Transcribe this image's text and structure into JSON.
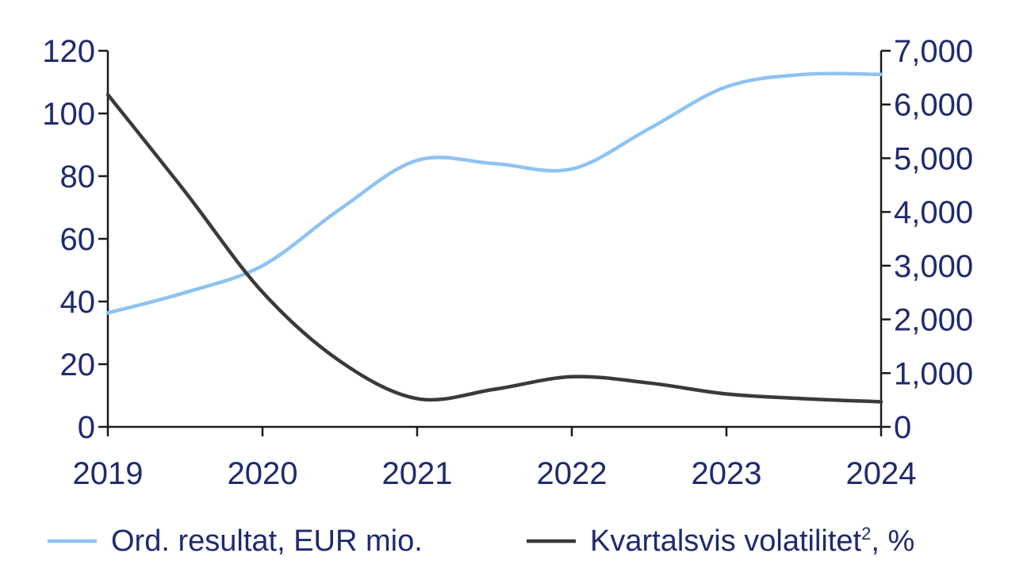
{
  "chart_data": {
    "type": "line",
    "x": [
      2019,
      2020,
      2021,
      2022,
      2023,
      2024
    ],
    "x_tick_labels": [
      "2019",
      "2020",
      "2021",
      "2022",
      "2023",
      "2024"
    ],
    "y_left": {
      "min": 0,
      "max": 120,
      "ticks": [
        "0",
        "20",
        "40",
        "60",
        "80",
        "100",
        "120"
      ]
    },
    "y_right": {
      "min": 0,
      "max": 7000,
      "ticks": [
        "0",
        "1,000",
        "2,000",
        "3,000",
        "4,000",
        "5,000",
        "6,000",
        "7,000"
      ]
    },
    "grid": false,
    "legend_position": "bottom",
    "series": [
      {
        "name": "Ord. resultat, EUR mio.",
        "axis": "right",
        "color": "#8ec3f2",
        "points": [
          {
            "x": 2019.0,
            "y": 2120
          },
          {
            "x": 2019.5,
            "y": 2500
          },
          {
            "x": 2020.0,
            "y": 3000
          },
          {
            "x": 2020.5,
            "y": 4050
          },
          {
            "x": 2021.0,
            "y": 4960
          },
          {
            "x": 2021.5,
            "y": 4900
          },
          {
            "x": 2022.0,
            "y": 4800
          },
          {
            "x": 2022.5,
            "y": 5550
          },
          {
            "x": 2023.0,
            "y": 6330
          },
          {
            "x": 2023.5,
            "y": 6560
          },
          {
            "x": 2024.0,
            "y": 6560
          }
        ]
      },
      {
        "name": "Kvartalsvis volatilitet",
        "name_superscript": "2",
        "name_suffix": ", %",
        "axis": "left",
        "color": "#3a3a3a",
        "points": [
          {
            "x": 2019.0,
            "y": 106
          },
          {
            "x": 2019.5,
            "y": 75
          },
          {
            "x": 2020.0,
            "y": 43
          },
          {
            "x": 2020.5,
            "y": 21
          },
          {
            "x": 2021.0,
            "y": 9
          },
          {
            "x": 2021.5,
            "y": 12
          },
          {
            "x": 2022.0,
            "y": 16
          },
          {
            "x": 2022.5,
            "y": 14
          },
          {
            "x": 2023.0,
            "y": 10.5
          },
          {
            "x": 2023.5,
            "y": 9
          },
          {
            "x": 2024.0,
            "y": 8
          }
        ]
      }
    ]
  }
}
